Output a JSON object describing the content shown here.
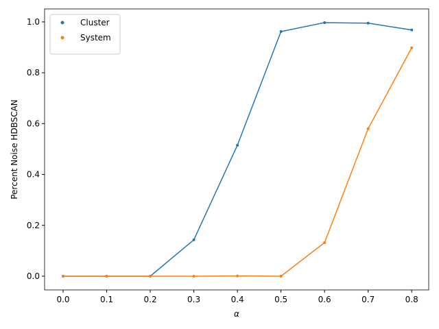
{
  "chart_data": {
    "type": "line",
    "x_label": "α",
    "y_label": "Percent Noise HDBSCAN",
    "x": [
      0.0,
      0.1,
      0.2,
      0.3,
      0.4,
      0.5,
      0.6,
      0.7,
      0.8
    ],
    "series": [
      {
        "name": "Cluster",
        "color": "#1f77b4",
        "values": [
          0,
          0,
          0,
          0.143,
          0.515,
          0.962,
          0.997,
          0.995,
          0.968
        ]
      },
      {
        "name": "System",
        "color": "#ff7f0e",
        "values": [
          0,
          0,
          0,
          0,
          0.001,
          0,
          0.132,
          0.58,
          0.898
        ]
      }
    ],
    "xlim": [
      -0.0425,
      0.839
    ],
    "ylim": [
      -0.054,
      1.051
    ],
    "xticks": [
      {
        "value": 0,
        "label": "0.0"
      },
      {
        "value": 0.1,
        "label": "0.1"
      },
      {
        "value": 0.2,
        "label": "0.2"
      },
      {
        "value": 0.3,
        "label": "0.3"
      },
      {
        "value": 0.4,
        "label": "0.4"
      },
      {
        "value": 0.5,
        "label": "0.5"
      },
      {
        "value": 0.6,
        "label": "0.6"
      },
      {
        "value": 0.7,
        "label": "0.7"
      },
      {
        "value": 0.8,
        "label": "0.8"
      }
    ],
    "yticks": [
      {
        "value": 0,
        "label": "0.0"
      },
      {
        "value": 0.2,
        "label": "0.2"
      },
      {
        "value": 0.4,
        "label": "0.4"
      },
      {
        "value": 0.6,
        "label": "0.6"
      },
      {
        "value": 0.8,
        "label": "0.8"
      },
      {
        "value": 1.0,
        "label": "1.0"
      }
    ],
    "legend": "upper left",
    "grid": false
  }
}
